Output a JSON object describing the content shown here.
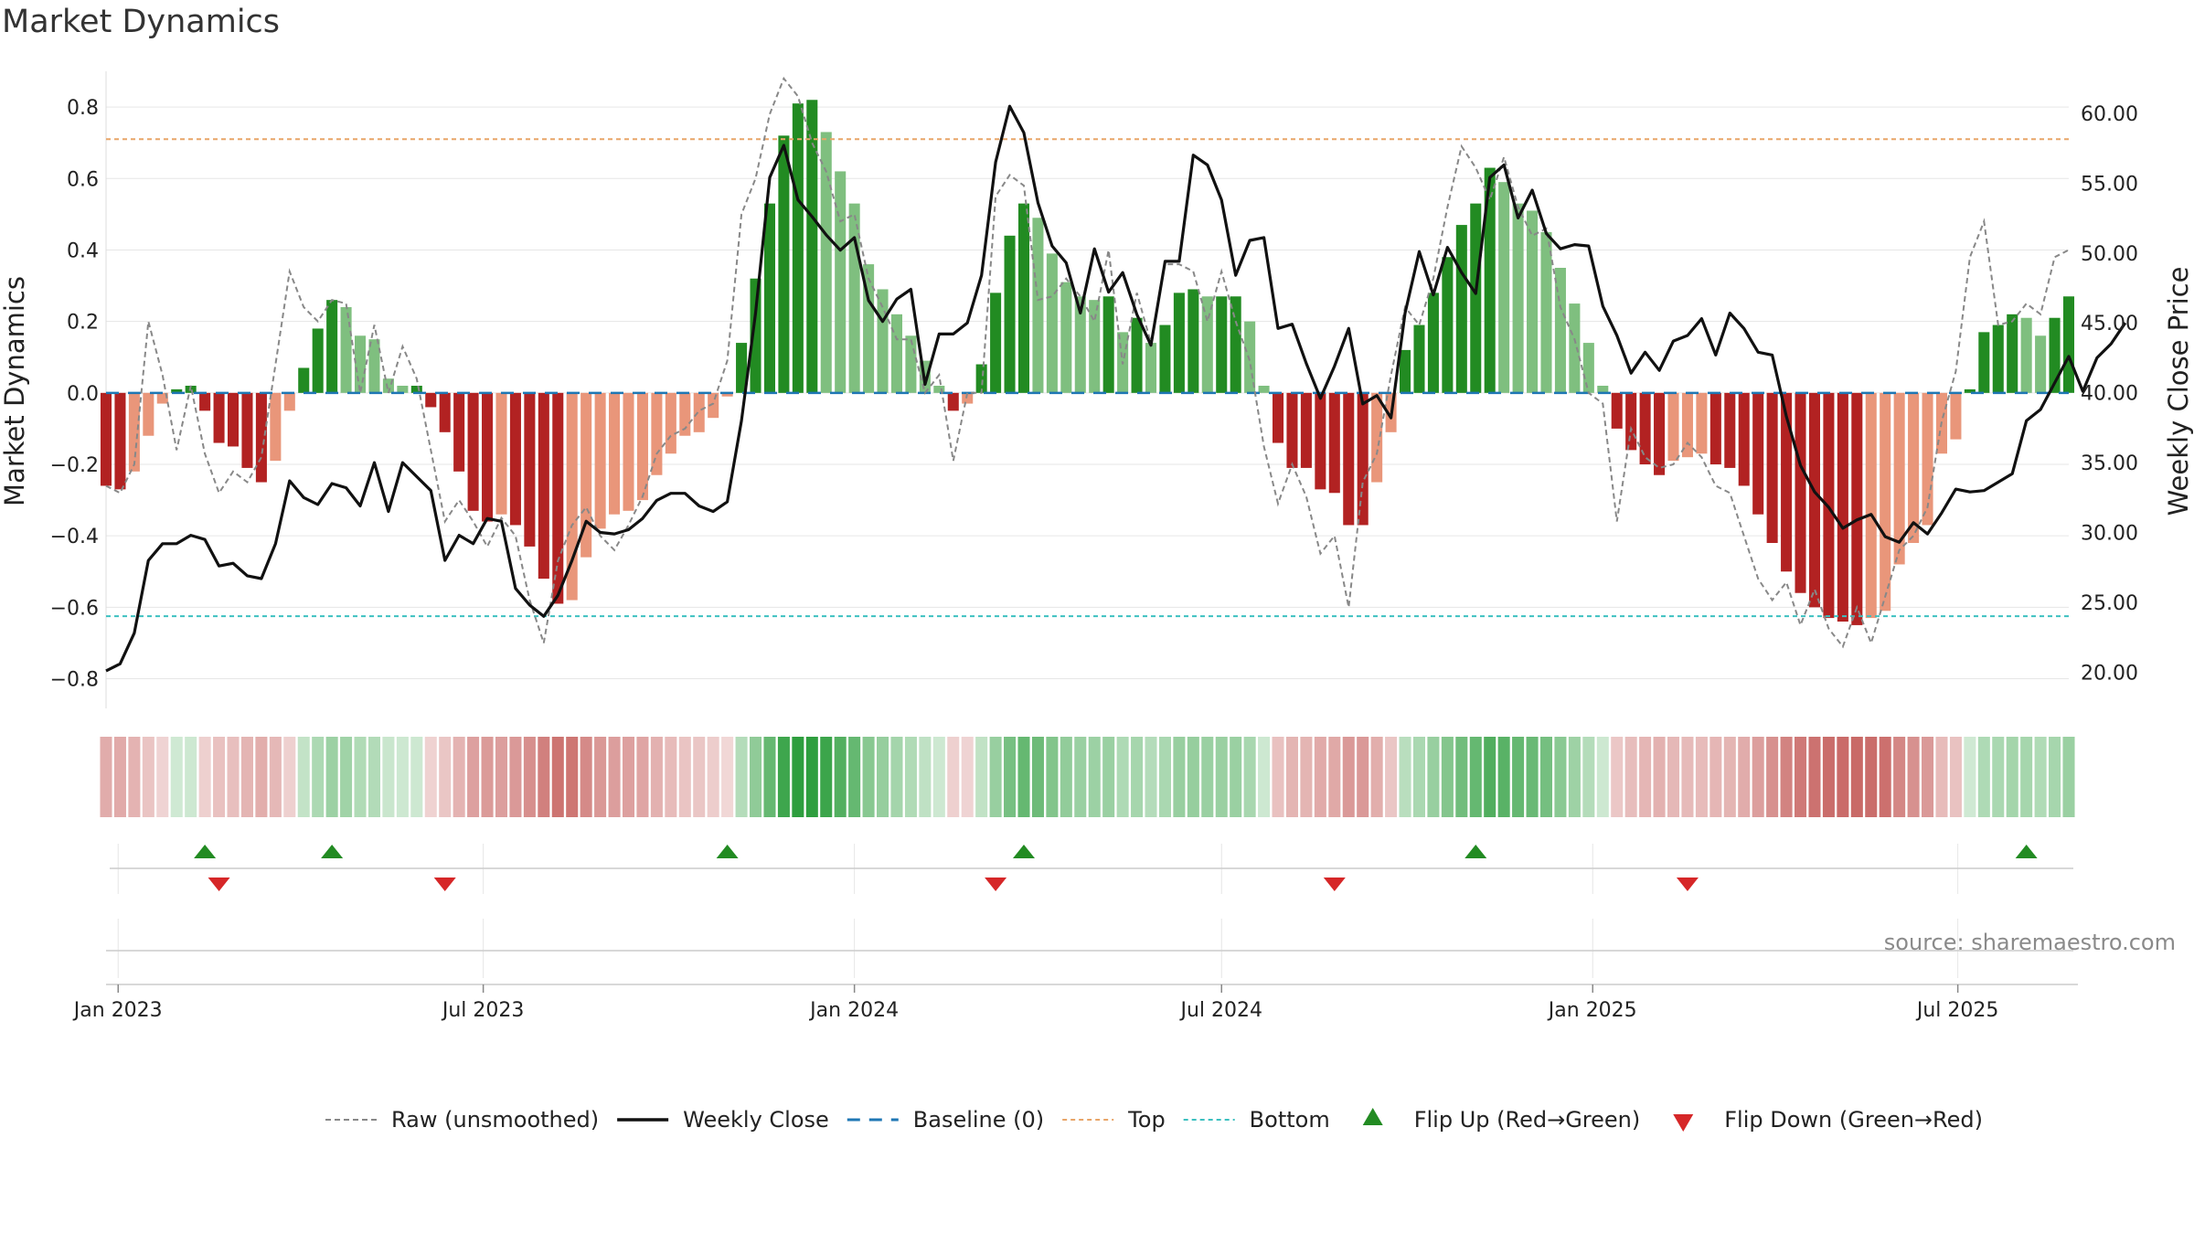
{
  "page": {
    "title": "Market Dynamics"
  },
  "chart_data": {
    "type": "bar",
    "title": "Market Dynamics",
    "ylabel": "Market Dynamics",
    "y2label": "Weekly Close Price",
    "ylim": [
      -0.86,
      0.9
    ],
    "y2lim": [
      18.0,
      63.0
    ],
    "yticks": [
      -0.8,
      -0.6,
      -0.4,
      -0.2,
      0,
      0.2,
      0.4,
      0.6,
      0.8
    ],
    "y2ticks": [
      20,
      25,
      30,
      35,
      40,
      45,
      50,
      55,
      60
    ],
    "xtick_labels": [
      "Jan 2023",
      "Jul 2023",
      "Jan 2024",
      "Jul 2024",
      "Jan 2025",
      "Jul 2025"
    ],
    "xtick_dates": [
      "2023-01-01",
      "2023-07-01",
      "2024-01-01",
      "2024-07-01",
      "2025-01-01",
      "2025-07-01"
    ],
    "date_start": "2022-12-26",
    "date_end": "2025-08-25",
    "top_level": 0.71,
    "bottom_level": -0.625,
    "source": "source: sharemaestro.com",
    "colors": {
      "strong_up": "#228B22",
      "weak_up": "#7FBF7F",
      "strong_down": "#B22222",
      "weak_down": "#E9967A",
      "raw": "#888888",
      "close": "#111111",
      "baseline": "#1F77B4",
      "top": "#E8A568",
      "bottom": "#3CC0C0"
    },
    "series": [
      {
        "name": "Market Dynamics",
        "values": [
          -0.26,
          -0.27,
          -0.22,
          -0.12,
          -0.03,
          0.01,
          0.02,
          -0.05,
          -0.14,
          -0.15,
          -0.21,
          -0.25,
          -0.19,
          -0.05,
          0.07,
          0.18,
          0.26,
          0.24,
          0.16,
          0.15,
          0.04,
          0.02,
          0.02,
          -0.04,
          -0.11,
          -0.22,
          -0.33,
          -0.36,
          -0.34,
          -0.37,
          -0.43,
          -0.52,
          -0.59,
          -0.58,
          -0.46,
          -0.38,
          -0.34,
          -0.33,
          -0.3,
          -0.23,
          -0.17,
          -0.12,
          -0.11,
          -0.07,
          -0.01,
          0.14,
          0.32,
          0.53,
          0.72,
          0.81,
          0.82,
          0.73,
          0.62,
          0.53,
          0.36,
          0.29,
          0.22,
          0.16,
          0.09,
          0.02,
          -0.05,
          -0.03,
          0.08,
          0.28,
          0.44,
          0.53,
          0.49,
          0.39,
          0.31,
          0.27,
          0.26,
          0.27,
          0.17,
          0.21,
          0.14,
          0.19,
          0.28,
          0.29,
          0.27,
          0.27,
          0.27,
          0.2,
          0.02,
          -0.14,
          -0.21,
          -0.21,
          -0.27,
          -0.28,
          -0.37,
          -0.37,
          -0.25,
          -0.11,
          0.12,
          0.19,
          0.28,
          0.38,
          0.47,
          0.53,
          0.63,
          0.59,
          0.53,
          0.51,
          0.45,
          0.35,
          0.25,
          0.14,
          0.02,
          -0.1,
          -0.16,
          -0.2,
          -0.23,
          -0.19,
          -0.18,
          -0.17,
          -0.2,
          -0.21,
          -0.26,
          -0.34,
          -0.42,
          -0.5,
          -0.56,
          -0.6,
          -0.63,
          -0.64,
          -0.65,
          -0.63,
          -0.61,
          -0.48,
          -0.42,
          -0.37,
          -0.17,
          -0.13,
          0.01,
          0.17,
          0.19,
          0.22,
          0.21,
          0.16,
          0.21,
          0.27
        ]
      },
      {
        "name": "Raw (unsmoothed)",
        "values": [
          -0.26,
          -0.28,
          -0.2,
          0.2,
          0.05,
          -0.16,
          0.02,
          -0.17,
          -0.28,
          -0.22,
          -0.25,
          -0.18,
          0.08,
          0.34,
          0.24,
          0.2,
          0.26,
          0.25,
          0.0,
          0.19,
          0.0,
          0.13,
          0.04,
          -0.16,
          -0.36,
          -0.3,
          -0.36,
          -0.43,
          -0.35,
          -0.4,
          -0.58,
          -0.7,
          -0.47,
          -0.37,
          -0.32,
          -0.4,
          -0.44,
          -0.37,
          -0.29,
          -0.17,
          -0.12,
          -0.1,
          -0.05,
          -0.03,
          0.09,
          0.5,
          0.6,
          0.78,
          0.88,
          0.83,
          0.7,
          0.62,
          0.48,
          0.5,
          0.32,
          0.24,
          0.15,
          0.15,
          0.0,
          0.05,
          -0.19,
          0.0,
          0.0,
          0.55,
          0.61,
          0.58,
          0.26,
          0.27,
          0.32,
          0.27,
          0.2,
          0.4,
          0.08,
          0.28,
          0.14,
          0.36,
          0.36,
          0.34,
          0.2,
          0.34,
          0.2,
          0.09,
          -0.15,
          -0.31,
          -0.2,
          -0.29,
          -0.45,
          -0.4,
          -0.6,
          -0.25,
          -0.17,
          0.05,
          0.24,
          0.19,
          0.32,
          0.52,
          0.69,
          0.63,
          0.54,
          0.66,
          0.52,
          0.44,
          0.46,
          0.24,
          0.15,
          0.0,
          -0.03,
          -0.36,
          -0.1,
          -0.18,
          -0.21,
          -0.2,
          -0.14,
          -0.18,
          -0.26,
          -0.28,
          -0.4,
          -0.52,
          -0.58,
          -0.53,
          -0.65,
          -0.55,
          -0.66,
          -0.71,
          -0.6,
          -0.7,
          -0.57,
          -0.44,
          -0.4,
          -0.32,
          -0.08,
          0.06,
          0.38,
          0.48,
          0.19,
          0.2,
          0.25,
          0.22,
          0.38,
          0.4
        ]
      },
      {
        "name": "Weekly Close",
        "values": [
          20.1,
          20.6,
          22.8,
          28.0,
          29.2,
          29.2,
          29.8,
          29.5,
          27.6,
          27.8,
          26.9,
          26.7,
          29.2,
          33.7,
          32.5,
          32.0,
          33.5,
          33.2,
          31.9,
          35.0,
          31.5,
          35.0,
          34.0,
          33.0,
          28.0,
          29.8,
          29.2,
          31.0,
          30.8,
          26.0,
          24.8,
          24.0,
          25.5,
          28.0,
          30.8,
          30.0,
          29.9,
          30.2,
          31.0,
          32.3,
          32.8,
          32.8,
          31.9,
          31.5,
          32.2,
          38.0,
          45.7,
          55.4,
          57.7,
          53.8,
          52.6,
          51.3,
          50.2,
          51.1,
          46.6,
          45.1,
          46.7,
          47.4,
          40.6,
          44.2,
          44.2,
          45.0,
          48.4,
          56.5,
          60.5,
          58.6,
          53.6,
          50.5,
          49.3,
          45.7,
          50.3,
          47.2,
          48.6,
          45.6,
          43.4,
          49.4,
          49.4,
          57.0,
          56.3,
          53.8,
          48.4,
          50.9,
          51.1,
          44.6,
          44.9,
          42.1,
          39.6,
          41.9,
          44.6,
          39.2,
          39.8,
          38.2,
          45.7,
          50.1,
          47.0,
          50.4,
          48.6,
          47.1,
          55.4,
          56.3,
          52.5,
          54.5,
          51.4,
          50.3,
          50.6,
          50.5,
          46.2,
          44.1,
          41.4,
          42.9,
          41.6,
          43.7,
          44.1,
          45.3,
          42.7,
          45.7,
          44.6,
          42.9,
          42.7,
          38.3,
          34.8,
          32.9,
          31.8,
          30.3,
          30.9,
          31.3,
          29.7,
          29.3,
          30.7,
          29.9,
          31.4,
          33.1,
          32.9,
          33.0,
          33.6,
          34.2,
          38.0,
          38.8,
          40.7,
          42.6,
          40.1,
          42.5,
          43.5,
          45.0
        ]
      }
    ],
    "flip_up_dates": [
      "2023-02-13",
      "2023-04-17",
      "2023-10-30",
      "2024-03-25",
      "2024-11-04",
      "2025-08-04"
    ],
    "flip_down_dates": [
      "2023-02-20",
      "2023-06-12",
      "2024-03-11",
      "2024-08-26",
      "2025-02-17"
    ],
    "legend": [
      {
        "label": "Raw (unsmoothed)",
        "kind": "dash-gray"
      },
      {
        "label": "Weekly Close",
        "kind": "solid-black"
      },
      {
        "label": "Baseline (0)",
        "kind": "dash-blue"
      },
      {
        "label": "Top",
        "kind": "dash-orange"
      },
      {
        "label": "Bottom",
        "kind": "dash-cyan"
      },
      {
        "label": "Flip Up (Red→Green)",
        "kind": "tri-up"
      },
      {
        "label": "Flip Down (Green→Red)",
        "kind": "tri-down"
      }
    ]
  }
}
